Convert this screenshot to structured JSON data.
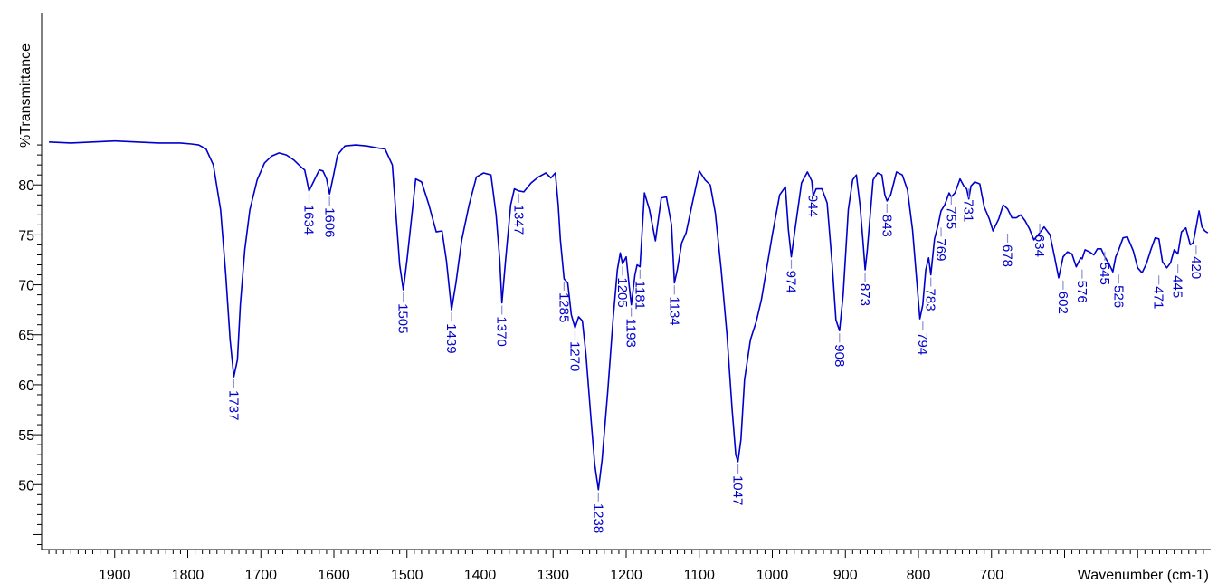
{
  "chart_data": {
    "type": "line",
    "xlabel": "Wavenumber (cm-1)",
    "ylabel": "%Transmittance",
    "xlim": [
      2000,
      400
    ],
    "ylim": [
      43.5,
      84.5
    ],
    "x_reversed": true,
    "grid": false,
    "line_color": "#0000cc",
    "marker_color": "#8f8fd0",
    "x_ticks": [
      "1900",
      "1800",
      "1700",
      "1600",
      "1500",
      "1400",
      "1300",
      "1200",
      "1100",
      "1000",
      "900",
      "800",
      "700"
    ],
    "y_ticks": [
      "50",
      "55",
      "60",
      "65",
      "70",
      "75",
      "80"
    ],
    "series": [
      {
        "x": [
          1990,
          1960,
          1930,
          1900,
          1870,
          1840,
          1810,
          1795,
          1785,
          1775,
          1765,
          1755,
          1748,
          1742,
          1737,
          1732,
          1728,
          1722,
          1715,
          1705,
          1695,
          1685,
          1675,
          1665,
          1655,
          1645,
          1640,
          1634,
          1628,
          1620,
          1615,
          1610,
          1606,
          1601,
          1595,
          1585,
          1570,
          1555,
          1540,
          1530,
          1520,
          1515,
          1510,
          1505,
          1500,
          1494,
          1488,
          1480,
          1470,
          1460,
          1452,
          1446,
          1439,
          1433,
          1425,
          1415,
          1405,
          1395,
          1385,
          1378,
          1373,
          1370,
          1365,
          1358,
          1353,
          1347,
          1340,
          1330,
          1320,
          1310,
          1303,
          1297,
          1293,
          1290,
          1285,
          1280,
          1275,
          1270,
          1265,
          1260,
          1255,
          1248,
          1243,
          1238,
          1233,
          1225,
          1218,
          1212,
          1208,
          1205,
          1200,
          1196,
          1193,
          1188,
          1185,
          1181,
          1175,
          1168,
          1160,
          1152,
          1145,
          1138,
          1134,
          1130,
          1124,
          1118,
          1110,
          1100,
          1092,
          1085,
          1078,
          1070,
          1062,
          1055,
          1050,
          1047,
          1043,
          1038,
          1030,
          1022,
          1015,
          1008,
          1000,
          990,
          982,
          978,
          974,
          968,
          960,
          952,
          946,
          944,
          940,
          932,
          925,
          918,
          913,
          908,
          903,
          896,
          890,
          885,
          880,
          876,
          873,
          870,
          862,
          856,
          850,
          846,
          843,
          838,
          830,
          822,
          815,
          808,
          803,
          798,
          794,
          790,
          786,
          783,
          778,
          773,
          769,
          764,
          758,
          755,
          750,
          743,
          738,
          734,
          731,
          728,
          723,
          716,
          710,
          703,
          698,
          690,
          684,
          678,
          672,
          666,
          660,
          654,
          648,
          642,
          634,
          628,
          620,
          614,
          608,
          602,
          596,
          590,
          584,
          578,
          576,
          572,
          566,
          560,
          555,
          550,
          545,
          540,
          534,
          530,
          526,
          520,
          514,
          506,
          500,
          494,
          488,
          482,
          476,
          471,
          466,
          460,
          455,
          450,
          445,
          440,
          434,
          428,
          424,
          420,
          416,
          412,
          408,
          404
        ],
        "y": [
          84.3,
          84.2,
          84.3,
          84.4,
          84.3,
          84.2,
          84.2,
          84.1,
          84.0,
          83.6,
          82.0,
          77.5,
          71.0,
          64.5,
          60.8,
          62.5,
          68.0,
          73.5,
          77.5,
          80.5,
          82.2,
          82.9,
          83.2,
          83.0,
          82.5,
          81.8,
          81.5,
          79.4,
          80.3,
          81.5,
          81.4,
          80.6,
          79.1,
          80.8,
          83.0,
          83.9,
          84.0,
          83.9,
          83.7,
          83.6,
          82.0,
          77.0,
          72.0,
          69.5,
          72.5,
          76.5,
          80.6,
          80.3,
          78.0,
          75.3,
          75.4,
          72.4,
          67.5,
          70.2,
          74.5,
          78.0,
          80.8,
          81.2,
          81.0,
          77.0,
          72.5,
          68.2,
          72.5,
          78.0,
          79.6,
          79.4,
          79.3,
          80.2,
          80.8,
          81.2,
          80.7,
          81.2,
          78.0,
          74.5,
          70.6,
          70.2,
          67.0,
          65.7,
          66.8,
          66.4,
          63.0,
          56.5,
          52.0,
          49.5,
          52.5,
          59.5,
          66.5,
          71.5,
          73.2,
          72.1,
          72.8,
          70.0,
          68.0,
          71.0,
          72.0,
          71.8,
          79.2,
          77.5,
          74.4,
          78.7,
          78.8,
          76.0,
          70.2,
          71.5,
          74.2,
          75.2,
          78.0,
          81.4,
          80.5,
          80.0,
          77.2,
          71.5,
          65.0,
          57.5,
          53.0,
          52.3,
          54.5,
          60.5,
          64.5,
          66.3,
          68.5,
          71.5,
          75.0,
          79.0,
          79.8,
          75.5,
          72.8,
          76.0,
          80.2,
          81.3,
          80.4,
          78.9,
          79.6,
          79.6,
          78.2,
          72.0,
          66.5,
          65.4,
          69.0,
          77.5,
          80.5,
          81.0,
          78.0,
          74.5,
          71.5,
          73.5,
          80.5,
          81.2,
          81.0,
          79.0,
          78.4,
          79.0,
          81.3,
          81.0,
          79.5,
          75.5,
          71.0,
          66.6,
          68.0,
          71.5,
          72.7,
          71.0,
          74.6,
          76.0,
          77.4,
          78.0,
          79.2,
          78.8,
          79.2,
          80.6,
          79.9,
          79.6,
          78.6,
          79.9,
          80.3,
          80.1,
          77.8,
          76.6,
          75.4,
          76.6,
          78.0,
          77.6,
          76.7,
          76.7,
          77.0,
          76.4,
          75.6,
          74.5,
          75.2,
          75.8,
          75.0,
          72.9,
          70.7,
          72.8,
          73.3,
          73.1,
          71.8,
          72.7,
          72.6,
          73.5,
          73.3,
          73.0,
          73.6,
          73.6,
          72.8,
          72.2,
          71.3,
          72.8,
          73.5,
          74.7,
          74.8,
          73.4,
          71.7,
          71.2,
          72.1,
          73.5,
          74.7,
          74.6,
          72.3,
          71.7,
          72.2,
          73.5,
          73.1,
          75.3,
          75.7,
          74.0,
          74.2,
          75.8,
          77.4,
          75.8,
          75.4,
          75.2
        ]
      }
    ],
    "peaks": [
      {
        "label": "1737",
        "x": 1737,
        "y": 60.8
      },
      {
        "label": "1634",
        "x": 1634,
        "y": 79.4
      },
      {
        "label": "1606",
        "x": 1606,
        "y": 79.1
      },
      {
        "label": "1505",
        "x": 1505,
        "y": 69.5
      },
      {
        "label": "1439",
        "x": 1439,
        "y": 67.5
      },
      {
        "label": "1370",
        "x": 1370,
        "y": 68.2
      },
      {
        "label": "1347",
        "x": 1347,
        "y": 79.4
      },
      {
        "label": "1285",
        "x": 1285,
        "y": 70.6
      },
      {
        "label": "1270",
        "x": 1270,
        "y": 65.7
      },
      {
        "label": "1238",
        "x": 1238,
        "y": 49.5
      },
      {
        "label": "1205",
        "x": 1205,
        "y": 72.1
      },
      {
        "label": "1193",
        "x": 1193,
        "y": 68.0
      },
      {
        "label": "1181",
        "x": 1181,
        "y": 71.8
      },
      {
        "label": "1134",
        "x": 1134,
        "y": 70.2
      },
      {
        "label": "1047",
        "x": 1047,
        "y": 52.3
      },
      {
        "label": "974",
        "x": 974,
        "y": 72.8
      },
      {
        "label": "944",
        "x": 944,
        "y": 80.4
      },
      {
        "label": "908",
        "x": 908,
        "y": 65.4
      },
      {
        "label": "873",
        "x": 873,
        "y": 71.5
      },
      {
        "label": "843",
        "x": 843,
        "y": 78.4
      },
      {
        "label": "794",
        "x": 794,
        "y": 66.6
      },
      {
        "label": "783",
        "x": 783,
        "y": 71.0
      },
      {
        "label": "769",
        "x": 769,
        "y": 76.0
      },
      {
        "label": "755",
        "x": 755,
        "y": 79.2
      },
      {
        "label": "731",
        "x": 731,
        "y": 79.9
      },
      {
        "label": "678",
        "x": 678,
        "y": 75.4
      },
      {
        "label": "634",
        "x": 634,
        "y": 76.4
      },
      {
        "label": "602",
        "x": 602,
        "y": 70.7
      },
      {
        "label": "576",
        "x": 576,
        "y": 71.8
      },
      {
        "label": "545",
        "x": 545,
        "y": 73.6
      },
      {
        "label": "526",
        "x": 526,
        "y": 71.3
      },
      {
        "label": "471",
        "x": 471,
        "y": 71.2
      },
      {
        "label": "445",
        "x": 445,
        "y": 72.3
      },
      {
        "label": "420",
        "x": 420,
        "y": 74.2
      }
    ]
  }
}
